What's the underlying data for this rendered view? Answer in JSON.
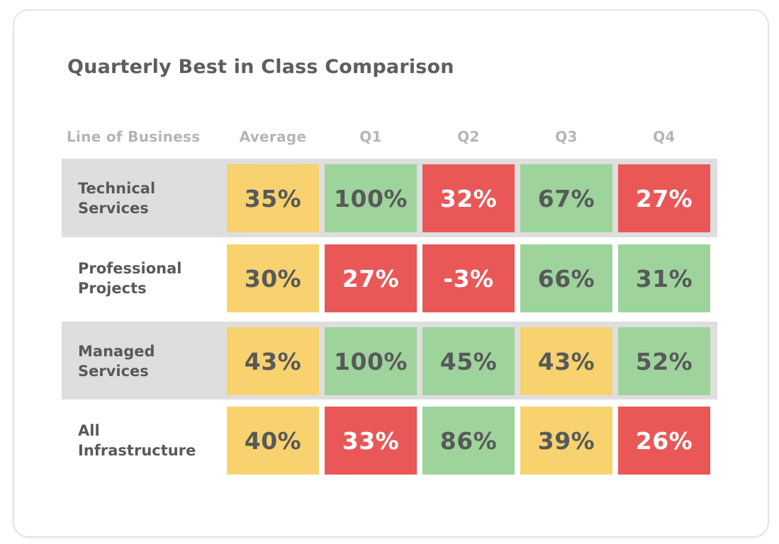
{
  "page_title": "Quarterly Best in Class Comparison",
  "colors": {
    "yellow": "#F7D26E",
    "green": "#9ED49B",
    "red": "#EA5757",
    "band": "#DEDEDE",
    "text_dark": "#58595B",
    "on_red": "#FFFFFF",
    "header_gray": "#B5B5B5",
    "title_gray": "#5E5E5E",
    "card_border": "#E3E3E7"
  },
  "table": {
    "columns": [
      "Line of Business",
      "Average",
      "Q1",
      "Q2",
      "Q3",
      "Q4"
    ],
    "rows": [
      {
        "label": "Technical Services",
        "cells": [
          {
            "value": "35%",
            "color": "yellow"
          },
          {
            "value": "100%",
            "color": "green"
          },
          {
            "value": "32%",
            "color": "red"
          },
          {
            "value": "67%",
            "color": "green"
          },
          {
            "value": "27%",
            "color": "red"
          }
        ]
      },
      {
        "label": "Professional Projects",
        "cells": [
          {
            "value": "30%",
            "color": "yellow"
          },
          {
            "value": "27%",
            "color": "red"
          },
          {
            "value": "-3%",
            "color": "red"
          },
          {
            "value": "66%",
            "color": "green"
          },
          {
            "value": "31%",
            "color": "green"
          }
        ]
      },
      {
        "label": "Managed Services",
        "cells": [
          {
            "value": "43%",
            "color": "yellow"
          },
          {
            "value": "100%",
            "color": "green"
          },
          {
            "value": "45%",
            "color": "green"
          },
          {
            "value": "43%",
            "color": "yellow"
          },
          {
            "value": "52%",
            "color": "green"
          }
        ]
      },
      {
        "label": "All Infrastructure",
        "cells": [
          {
            "value": "40%",
            "color": "yellow"
          },
          {
            "value": "33%",
            "color": "red"
          },
          {
            "value": "86%",
            "color": "green"
          },
          {
            "value": "39%",
            "color": "yellow"
          },
          {
            "value": "26%",
            "color": "red"
          }
        ]
      }
    ]
  },
  "chart_data": {
    "type": "heatmap",
    "title": "Quarterly Best in Class Comparison",
    "row_header": "Line of Business",
    "columns": [
      "Average",
      "Q1",
      "Q2",
      "Q3",
      "Q4"
    ],
    "rows": [
      "Technical Services",
      "Professional Projects",
      "Managed Services",
      "All Infrastructure"
    ],
    "values_percent": [
      [
        35,
        100,
        32,
        67,
        27
      ],
      [
        30,
        27,
        -3,
        66,
        31
      ],
      [
        43,
        100,
        45,
        43,
        52
      ],
      [
        40,
        33,
        86,
        39,
        26
      ]
    ],
    "cell_status_colors": [
      [
        "yellow",
        "green",
        "red",
        "green",
        "red"
      ],
      [
        "yellow",
        "red",
        "red",
        "green",
        "green"
      ],
      [
        "yellow",
        "green",
        "green",
        "yellow",
        "green"
      ],
      [
        "yellow",
        "red",
        "green",
        "yellow",
        "red"
      ]
    ],
    "legend_position": "none",
    "grid": false
  }
}
